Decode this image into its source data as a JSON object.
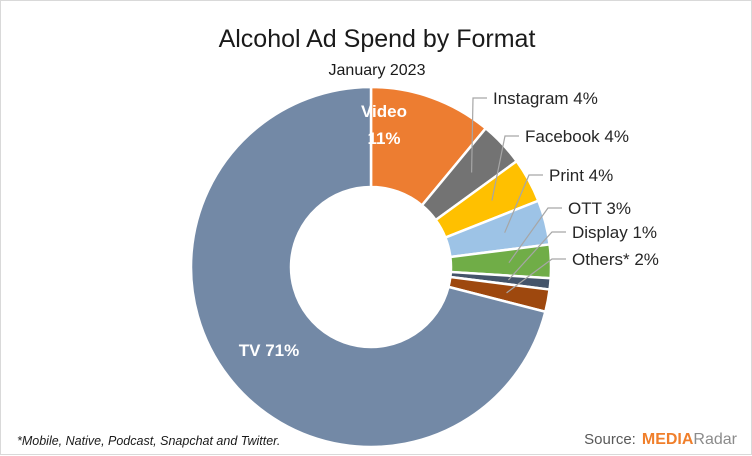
{
  "chart_data": {
    "type": "pie",
    "style": "donut",
    "title": "Alcohol Ad Spend by Format",
    "subtitle": "January 2023",
    "slices": [
      {
        "name": "Video",
        "value": 11,
        "label_line1": "Video",
        "label_line2": "11%",
        "color": "#ed7d31",
        "label": "inside"
      },
      {
        "name": "Instagram",
        "value": 4,
        "label_line1": "Instagram 4%",
        "color": "#737373",
        "label": "outside"
      },
      {
        "name": "Facebook",
        "value": 4,
        "label_line1": "Facebook 4%",
        "color": "#ffc000",
        "label": "outside"
      },
      {
        "name": "Print",
        "value": 4,
        "label_line1": "Print 4%",
        "color": "#9dc3e6",
        "label": "outside"
      },
      {
        "name": "OTT",
        "value": 3,
        "label_line1": "OTT 3%",
        "color": "#70ad47",
        "label": "outside"
      },
      {
        "name": "Display",
        "value": 1,
        "label_line1": "Display 1%",
        "color": "#44546a",
        "label": "outside"
      },
      {
        "name": "Others*",
        "value": 2,
        "label_line1": "Others* 2%",
        "color": "#9e480e",
        "label": "outside"
      },
      {
        "name": "TV",
        "value": 71,
        "label_line1": "TV 71%",
        "color": "#7389a6",
        "label": "inside"
      }
    ]
  },
  "footnote": "*Mobile, Native, Podcast, Snapchat and Twitter.",
  "source": {
    "label": "Source:",
    "brand_part1": "MEDIA",
    "brand_part2": "Radar"
  }
}
